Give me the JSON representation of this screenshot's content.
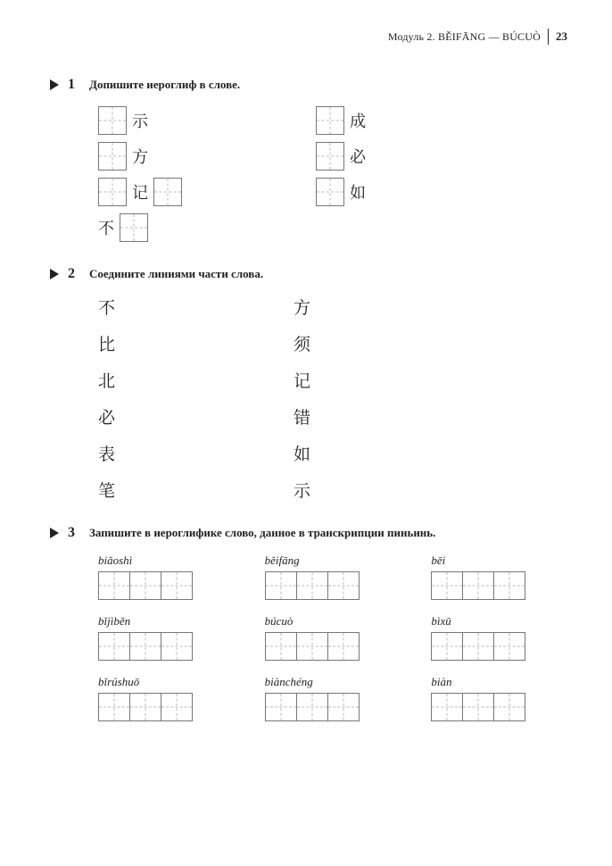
{
  "header": {
    "text": "Модуль 2. BĚIFĀNG — BÚCUÒ",
    "pageNumber": "23"
  },
  "ex1": {
    "number": "1",
    "title": "Допишите иероглиф в слове.",
    "left": [
      {
        "type": "box-char",
        "char": "示"
      },
      {
        "type": "box-char",
        "char": "方"
      },
      {
        "type": "box-char-box",
        "char": "记"
      },
      {
        "type": "char-box",
        "char": "不"
      }
    ],
    "right": [
      {
        "type": "box-char",
        "char": "成"
      },
      {
        "type": "box-char",
        "char": "必"
      },
      {
        "type": "box-char",
        "char": "如"
      }
    ]
  },
  "ex2": {
    "number": "2",
    "title": "Соедините линиями части слова.",
    "left": [
      "不",
      "比",
      "北",
      "必",
      "表",
      "笔"
    ],
    "right": [
      "方",
      "须",
      "记",
      "错",
      "如",
      "示"
    ]
  },
  "ex3": {
    "number": "3",
    "title": "Запишите в иероглифике слово, данное в транскрипции пиньинь.",
    "items": [
      {
        "pinyin": "biǎoshì",
        "boxes": 3
      },
      {
        "pinyin": "běifāng",
        "boxes": 3
      },
      {
        "pinyin": "bēi",
        "boxes": 3
      },
      {
        "pinyin": "bǐjìběn",
        "boxes": 3
      },
      {
        "pinyin": "búcuò",
        "boxes": 3
      },
      {
        "pinyin": "bìxū",
        "boxes": 3
      },
      {
        "pinyin": "bǐrúshuō",
        "boxes": 3
      },
      {
        "pinyin": "biànchéng",
        "boxes": 3
      },
      {
        "pinyin": "biàn",
        "boxes": 3
      }
    ]
  }
}
